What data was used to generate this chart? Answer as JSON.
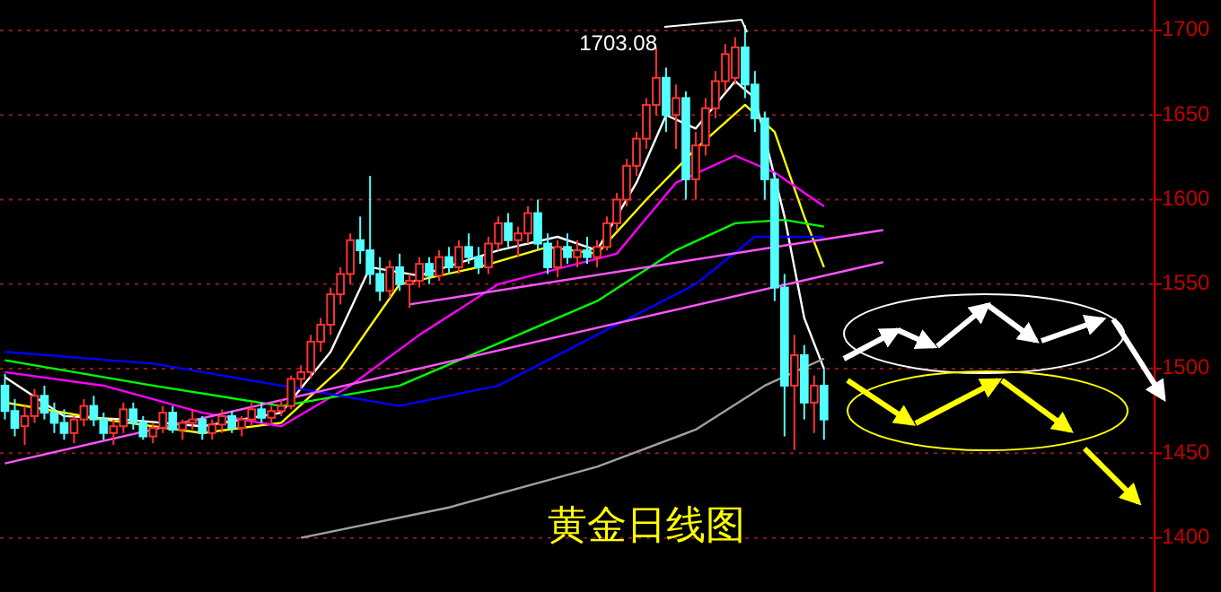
{
  "chart_data": {
    "type": "candlestick",
    "title": "黄金日线图",
    "categories": [
      null,
      null,
      null,
      null,
      null,
      null,
      null,
      null,
      null,
      null,
      null,
      null,
      null,
      null,
      null,
      null,
      null,
      null,
      null,
      null,
      null,
      null,
      null,
      null,
      null,
      null,
      null,
      null,
      null,
      null,
      null,
      null,
      null,
      null,
      null,
      null,
      null,
      null,
      null,
      null,
      null,
      null,
      null,
      null,
      null,
      null,
      null,
      null,
      null,
      null,
      null,
      null,
      null,
      null,
      null,
      null,
      null,
      null,
      null,
      null,
      null,
      null,
      null,
      null,
      null,
      null,
      null,
      null,
      null,
      null,
      null,
      null,
      null,
      null,
      null,
      null,
      null,
      null,
      null,
      null,
      null,
      null,
      null,
      null,
      null,
      null,
      null,
      null,
      null,
      null,
      null,
      null,
      null,
      null,
      null,
      null,
      null,
      null,
      null,
      null,
      null,
      null,
      null,
      null,
      null,
      null,
      null,
      null,
      null,
      null,
      null,
      null,
      null,
      null,
      null,
      null,
      null
    ],
    "ohlc": [
      [
        1490,
        1497,
        1470,
        1475
      ],
      [
        1475,
        1482,
        1460,
        1465
      ],
      [
        1466,
        1478,
        1455,
        1472
      ],
      [
        1472,
        1488,
        1468,
        1484
      ],
      [
        1484,
        1490,
        1470,
        1474
      ],
      [
        1474,
        1480,
        1462,
        1468
      ],
      [
        1468,
        1476,
        1458,
        1462
      ],
      [
        1462,
        1472,
        1456,
        1470
      ],
      [
        1470,
        1482,
        1466,
        1478
      ],
      [
        1478,
        1484,
        1466,
        1470
      ],
      [
        1470,
        1474,
        1458,
        1462
      ],
      [
        1462,
        1470,
        1455,
        1466
      ],
      [
        1466,
        1480,
        1462,
        1476
      ],
      [
        1476,
        1480,
        1464,
        1468
      ],
      [
        1468,
        1472,
        1458,
        1460
      ],
      [
        1460,
        1468,
        1456,
        1465
      ],
      [
        1465,
        1478,
        1462,
        1474
      ],
      [
        1474,
        1478,
        1462,
        1464
      ],
      [
        1464,
        1470,
        1458,
        1468
      ],
      [
        1468,
        1476,
        1464,
        1470
      ],
      [
        1470,
        1472,
        1458,
        1462
      ],
      [
        1462,
        1470,
        1458,
        1467
      ],
      [
        1467,
        1476,
        1462,
        1472
      ],
      [
        1472,
        1475,
        1462,
        1465
      ],
      [
        1465,
        1472,
        1460,
        1470
      ],
      [
        1470,
        1480,
        1466,
        1476
      ],
      [
        1476,
        1480,
        1468,
        1471
      ],
      [
        1471,
        1478,
        1468,
        1475
      ],
      [
        1475,
        1482,
        1472,
        1478
      ],
      [
        1478,
        1496,
        1476,
        1494
      ],
      [
        1494,
        1502,
        1488,
        1498
      ],
      [
        1498,
        1520,
        1494,
        1516
      ],
      [
        1516,
        1530,
        1510,
        1526
      ],
      [
        1526,
        1548,
        1520,
        1544
      ],
      [
        1544,
        1560,
        1538,
        1556
      ],
      [
        1556,
        1580,
        1550,
        1576
      ],
      [
        1576,
        1590,
        1562,
        1570
      ],
      [
        1570,
        1614,
        1550,
        1556
      ],
      [
        1556,
        1566,
        1540,
        1546
      ],
      [
        1546,
        1564,
        1542,
        1560
      ],
      [
        1560,
        1568,
        1546,
        1550
      ],
      [
        1550,
        1556,
        1536,
        1552
      ],
      [
        1552,
        1566,
        1548,
        1562
      ],
      [
        1562,
        1566,
        1550,
        1555
      ],
      [
        1555,
        1570,
        1552,
        1566
      ],
      [
        1566,
        1572,
        1556,
        1560
      ],
      [
        1560,
        1576,
        1556,
        1572
      ],
      [
        1572,
        1580,
        1562,
        1566
      ],
      [
        1566,
        1572,
        1556,
        1560
      ],
      [
        1560,
        1578,
        1556,
        1574
      ],
      [
        1574,
        1590,
        1570,
        1586
      ],
      [
        1586,
        1592,
        1572,
        1576
      ],
      [
        1576,
        1584,
        1566,
        1580
      ],
      [
        1580,
        1596,
        1574,
        1592
      ],
      [
        1592,
        1600,
        1570,
        1574
      ],
      [
        1574,
        1580,
        1556,
        1560
      ],
      [
        1560,
        1576,
        1554,
        1572
      ],
      [
        1572,
        1580,
        1562,
        1566
      ],
      [
        1566,
        1576,
        1560,
        1570
      ],
      [
        1570,
        1578,
        1562,
        1566
      ],
      [
        1566,
        1576,
        1560,
        1572
      ],
      [
        1572,
        1590,
        1570,
        1586
      ],
      [
        1586,
        1604,
        1582,
        1600
      ],
      [
        1600,
        1624,
        1596,
        1620
      ],
      [
        1620,
        1640,
        1614,
        1636
      ],
      [
        1636,
        1660,
        1630,
        1656
      ],
      [
        1656,
        1690,
        1650,
        1672
      ],
      [
        1672,
        1678,
        1640,
        1650
      ],
      [
        1650,
        1668,
        1630,
        1660
      ],
      [
        1660,
        1664,
        1600,
        1612
      ],
      [
        1612,
        1640,
        1600,
        1632
      ],
      [
        1632,
        1660,
        1626,
        1654
      ],
      [
        1654,
        1676,
        1648,
        1670
      ],
      [
        1670,
        1692,
        1664,
        1686
      ],
      [
        1672,
        1696,
        1668,
        1690
      ],
      [
        1690,
        1703.08,
        1660,
        1668
      ],
      [
        1668,
        1676,
        1640,
        1648
      ],
      [
        1648,
        1652,
        1600,
        1612
      ],
      [
        1612,
        1616,
        1540,
        1548
      ],
      [
        1548,
        1556,
        1460,
        1490
      ],
      [
        1490,
        1520,
        1452,
        1508
      ],
      [
        1508,
        1514,
        1470,
        1480
      ],
      [
        1480,
        1496,
        1462,
        1490
      ],
      [
        1490,
        1500,
        1458,
        1470
      ],
      null,
      null,
      null,
      null,
      null,
      null,
      null,
      null,
      null,
      null,
      null,
      null,
      null,
      null,
      null,
      null,
      null,
      null,
      null,
      null,
      null,
      null,
      null,
      null,
      null,
      null,
      null,
      null,
      null,
      null,
      null,
      null,
      null
    ],
    "series": [
      {
        "type": "line",
        "color": "#ffffff",
        "values": [
          1495,
          null,
          null,
          null,
          null,
          null,
          1472,
          null,
          null,
          null,
          null,
          null,
          1470,
          null,
          null,
          null,
          null,
          null,
          null,
          null,
          1466,
          null,
          null,
          null,
          null,
          null,
          null,
          null,
          1474,
          null,
          null,
          null,
          null,
          1510,
          null,
          null,
          null,
          1560,
          null,
          null,
          null,
          null,
          1555,
          null,
          null,
          null,
          null,
          null,
          null,
          null,
          1570,
          null,
          null,
          null,
          null,
          null,
          1578,
          null,
          null,
          null,
          1570,
          null,
          null,
          null,
          1610,
          null,
          null,
          1650,
          null,
          null,
          1642,
          null,
          null,
          null,
          1670,
          null,
          1660,
          null,
          null,
          1590,
          null,
          1530,
          null,
          1500,
          null,
          null,
          null,
          null,
          null,
          null,
          null,
          null,
          null,
          null,
          null,
          null,
          null,
          null,
          null,
          null,
          null,
          null,
          null,
          null,
          null,
          null,
          null,
          null,
          null,
          null,
          null,
          null,
          null,
          null,
          null,
          null,
          null
        ]
      },
      {
        "type": "line",
        "color": "#ffff00",
        "values": [
          1480,
          null,
          null,
          null,
          null,
          null,
          null,
          null,
          null,
          null,
          1470,
          null,
          null,
          null,
          null,
          null,
          null,
          null,
          null,
          null,
          1462,
          null,
          null,
          null,
          null,
          null,
          null,
          null,
          1468,
          null,
          null,
          null,
          null,
          null,
          1500,
          null,
          null,
          null,
          null,
          null,
          1550,
          null,
          null,
          null,
          null,
          null,
          null,
          null,
          1560,
          null,
          null,
          null,
          null,
          null,
          null,
          1572,
          null,
          null,
          null,
          null,
          1568,
          null,
          null,
          null,
          null,
          1600,
          null,
          null,
          null,
          null,
          1630,
          null,
          null,
          null,
          null,
          1656,
          null,
          null,
          1640,
          null,
          null,
          1590,
          null,
          1560,
          null,
          null,
          null,
          null,
          null,
          null,
          null,
          null,
          null,
          null,
          null,
          null,
          null,
          null,
          null,
          null,
          null,
          null,
          null,
          null,
          null,
          null,
          null,
          null,
          null,
          null,
          null,
          null,
          null,
          null,
          null,
          null,
          null
        ]
      },
      {
        "type": "line",
        "color": "#ff00ff",
        "values": [
          1498,
          null,
          null,
          null,
          null,
          null,
          null,
          null,
          null,
          null,
          1490,
          null,
          null,
          null,
          null,
          null,
          null,
          null,
          null,
          null,
          1474,
          null,
          null,
          null,
          null,
          null,
          null,
          null,
          1466,
          null,
          null,
          null,
          null,
          null,
          null,
          1490,
          null,
          null,
          null,
          null,
          null,
          null,
          1520,
          null,
          null,
          null,
          null,
          null,
          null,
          null,
          1550,
          null,
          null,
          null,
          null,
          null,
          null,
          null,
          1562,
          null,
          null,
          null,
          1568,
          null,
          null,
          null,
          null,
          null,
          1610,
          null,
          null,
          null,
          null,
          null,
          1626,
          null,
          null,
          null,
          1616,
          null,
          null,
          null,
          null,
          1596,
          null,
          null,
          null,
          null,
          null,
          null,
          null,
          null,
          null,
          null,
          null,
          null,
          null,
          null,
          null,
          null,
          null,
          null,
          null,
          null,
          null,
          null,
          null,
          null,
          null,
          null,
          null,
          null,
          null,
          null,
          null,
          null,
          null
        ]
      },
      {
        "type": "line",
        "color": "#00ff00",
        "values": [
          1505,
          null,
          null,
          null,
          null,
          null,
          null,
          null,
          null,
          null,
          null,
          null,
          null,
          null,
          null,
          1490,
          null,
          null,
          null,
          null,
          null,
          null,
          null,
          null,
          null,
          null,
          null,
          null,
          1478,
          null,
          null,
          null,
          null,
          null,
          null,
          null,
          null,
          null,
          null,
          null,
          1490,
          null,
          null,
          null,
          null,
          null,
          null,
          null,
          null,
          null,
          1515,
          null,
          null,
          null,
          null,
          null,
          null,
          null,
          null,
          null,
          1540,
          null,
          null,
          null,
          null,
          null,
          null,
          null,
          1570,
          null,
          null,
          null,
          null,
          null,
          1586,
          null,
          null,
          null,
          null,
          1588,
          null,
          null,
          null,
          1584,
          null,
          null,
          null,
          null,
          null,
          null,
          null,
          null,
          null,
          null,
          null,
          null,
          null,
          null,
          null,
          null,
          null,
          null,
          null,
          null,
          null,
          null,
          null,
          null,
          null,
          null,
          null,
          null,
          null,
          null,
          null,
          null,
          null
        ]
      },
      {
        "type": "line",
        "color": "#0000ff",
        "values": [
          1510,
          null,
          null,
          null,
          null,
          null,
          null,
          null,
          null,
          null,
          null,
          null,
          null,
          null,
          null,
          1503,
          null,
          null,
          null,
          null,
          null,
          null,
          null,
          null,
          null,
          null,
          null,
          null,
          1490,
          null,
          null,
          null,
          null,
          null,
          null,
          null,
          null,
          null,
          null,
          null,
          1478,
          null,
          null,
          null,
          null,
          null,
          null,
          null,
          null,
          null,
          1490,
          null,
          null,
          null,
          null,
          null,
          null,
          null,
          null,
          null,
          1520,
          null,
          null,
          null,
          null,
          null,
          null,
          null,
          null,
          null,
          1550,
          null,
          null,
          null,
          null,
          null,
          1578,
          null,
          null,
          null,
          null,
          null,
          null,
          1578,
          null,
          null,
          null,
          null,
          null,
          null,
          null,
          null,
          null,
          null,
          null,
          null,
          null,
          null,
          null,
          null,
          null,
          null,
          null,
          null,
          null,
          null,
          null,
          null,
          null,
          null,
          null,
          null,
          null,
          null,
          null,
          null,
          null
        ]
      },
      {
        "type": "line",
        "color": "#a0a0a0",
        "values": [
          null,
          null,
          null,
          null,
          null,
          null,
          null,
          null,
          null,
          null,
          null,
          null,
          null,
          null,
          null,
          null,
          null,
          null,
          null,
          null,
          null,
          null,
          null,
          null,
          null,
          null,
          null,
          null,
          null,
          null,
          1400,
          null,
          null,
          null,
          null,
          null,
          null,
          null,
          null,
          null,
          null,
          null,
          null,
          null,
          null,
          1418,
          null,
          null,
          null,
          null,
          null,
          null,
          null,
          null,
          null,
          null,
          null,
          null,
          null,
          null,
          1442,
          null,
          null,
          null,
          null,
          null,
          null,
          null,
          null,
          null,
          1464,
          null,
          null,
          null,
          null,
          null,
          null,
          1490,
          null,
          null,
          null,
          null,
          null,
          1506,
          null,
          null,
          null,
          null,
          null,
          null,
          null,
          null,
          null,
          null,
          null,
          null,
          null,
          null,
          null,
          null,
          null,
          null,
          null,
          null,
          null,
          null,
          null,
          null,
          null,
          null,
          null,
          null,
          null,
          null,
          null,
          null,
          null
        ]
      },
      {
        "type": "line",
        "color": "#ff55ff",
        "values": [
          null,
          null,
          null,
          null,
          null,
          null,
          null,
          null,
          null,
          null,
          null,
          null,
          null,
          null,
          null,
          null,
          null,
          null,
          null,
          null,
          null,
          null,
          null,
          null,
          null,
          null,
          null,
          null,
          null,
          null,
          null,
          null,
          null,
          null,
          null,
          null,
          null,
          null,
          null,
          null,
          null,
          1538,
          null,
          null,
          null,
          null,
          null,
          null,
          null,
          null,
          null,
          null,
          null,
          null,
          null,
          null,
          null,
          null,
          null,
          null,
          null,
          null,
          null,
          null,
          null,
          null,
          null,
          null,
          null,
          null,
          null,
          null,
          null,
          null,
          null,
          null,
          null,
          null,
          null,
          null,
          null,
          null,
          null,
          null,
          null,
          null,
          null,
          null,
          null,
          1582,
          null,
          null,
          null,
          null,
          null,
          null,
          null,
          null,
          null,
          null,
          null,
          null,
          null,
          null,
          null,
          null,
          null,
          null,
          null,
          null,
          null,
          null,
          null,
          null,
          null,
          null,
          null
        ]
      },
      {
        "type": "line",
        "color": "#ff55ff",
        "values": [
          1444,
          null,
          null,
          null,
          null,
          null,
          null,
          null,
          null,
          null,
          null,
          null,
          null,
          null,
          null,
          null,
          null,
          null,
          null,
          null,
          null,
          null,
          null,
          null,
          null,
          null,
          null,
          null,
          null,
          null,
          null,
          null,
          null,
          null,
          null,
          null,
          null,
          null,
          null,
          null,
          null,
          null,
          null,
          null,
          null,
          null,
          null,
          null,
          null,
          null,
          null,
          null,
          null,
          null,
          null,
          null,
          null,
          null,
          null,
          null,
          null,
          null,
          null,
          null,
          null,
          null,
          null,
          null,
          null,
          null,
          null,
          null,
          null,
          null,
          null,
          null,
          null,
          null,
          null,
          null,
          null,
          null,
          null,
          null,
          null,
          null,
          null,
          null,
          null,
          1563,
          null,
          null,
          null,
          null,
          null,
          null,
          null,
          null,
          null,
          null,
          null,
          null,
          null,
          null,
          null,
          null,
          null,
          null,
          null,
          null,
          null,
          null,
          null,
          null,
          null,
          null,
          null
        ]
      }
    ],
    "ylim": [
      1368,
      1718
    ],
    "yticks": [
      1400,
      1450,
      1500,
      1550,
      1600,
      1650,
      1700
    ],
    "grid": "y",
    "tick_labels": "y",
    "annotations": [
      "1703.08"
    ]
  }
}
